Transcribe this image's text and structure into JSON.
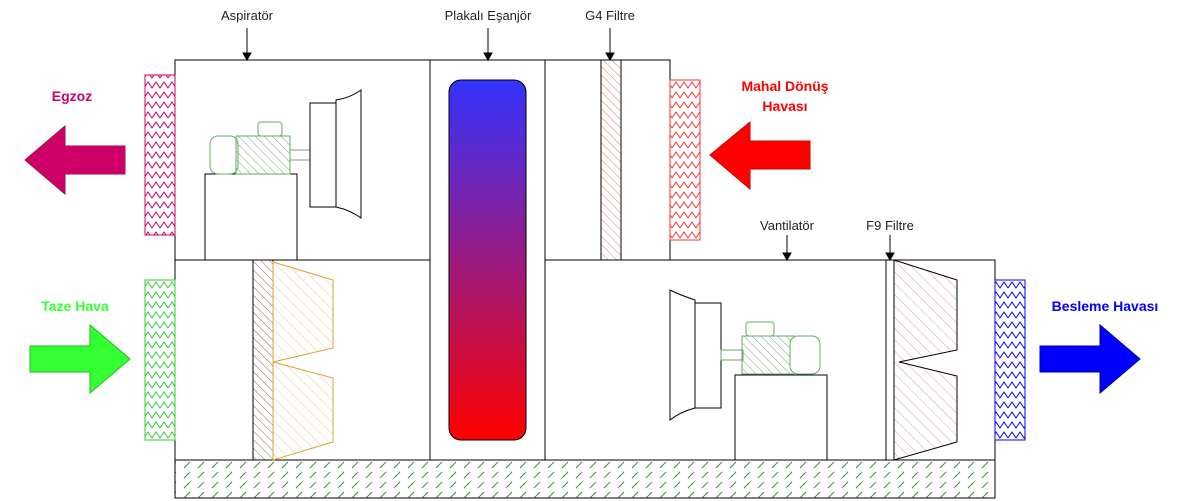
{
  "labels": {
    "aspirator": "Aspiratör",
    "plate_exchanger": "Plakalı Eşanjör",
    "g4_filter": "G4 Filtre",
    "fan": "Vantilatör",
    "f9_filter": "F9 Filtre"
  },
  "flows": {
    "exhaust": {
      "label": "Egzoz",
      "color": "#cc0066"
    },
    "return_air": {
      "line1": "Mahal Dönüş",
      "line2": "Havası",
      "color": "#ff0000"
    },
    "fresh_air": {
      "label": "Taze Hava",
      "color": "#33ff33"
    },
    "supply_air": {
      "label": "Besleme Havası",
      "color": "#0000ff"
    }
  },
  "colors": {
    "exchanger_top": "#3333ff",
    "exchanger_bottom": "#ff0000",
    "motor": "#66aa66",
    "filter_hatch": "#cc8866",
    "bag_filter": "#dda033",
    "f9_hatch": "#ee9999",
    "floor_hatch": "#448844"
  }
}
